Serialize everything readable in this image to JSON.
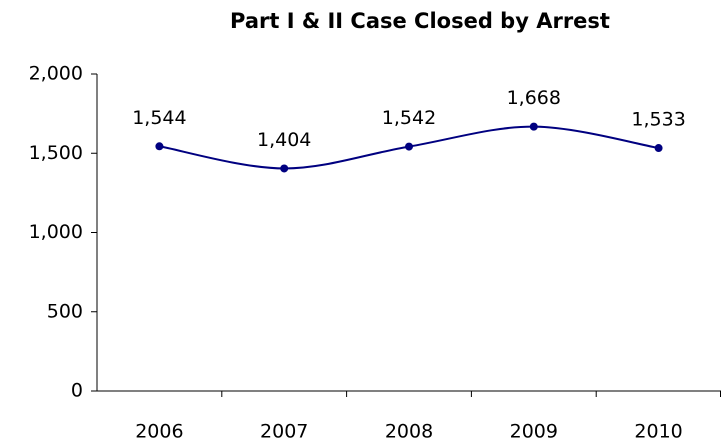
{
  "chart_data": {
    "type": "line",
    "title": "Part I & II Case Closed by Arrest",
    "categories": [
      "2006",
      "2007",
      "2008",
      "2009",
      "2010"
    ],
    "values": [
      1544,
      1404,
      1542,
      1668,
      1533
    ],
    "value_labels": [
      "1,544",
      "1,404",
      "1,542",
      "1,668",
      "1,533"
    ],
    "color": "#000080",
    "smooth": true,
    "ylim": [
      0,
      2000
    ],
    "yticks": [
      0,
      500,
      {
        "value": 1000,
        "label": "1,000"
      },
      {
        "value": 1500,
        "label": "1,500"
      },
      {
        "value": 2000,
        "label": "2,000"
      }
    ],
    "grid": false
  }
}
